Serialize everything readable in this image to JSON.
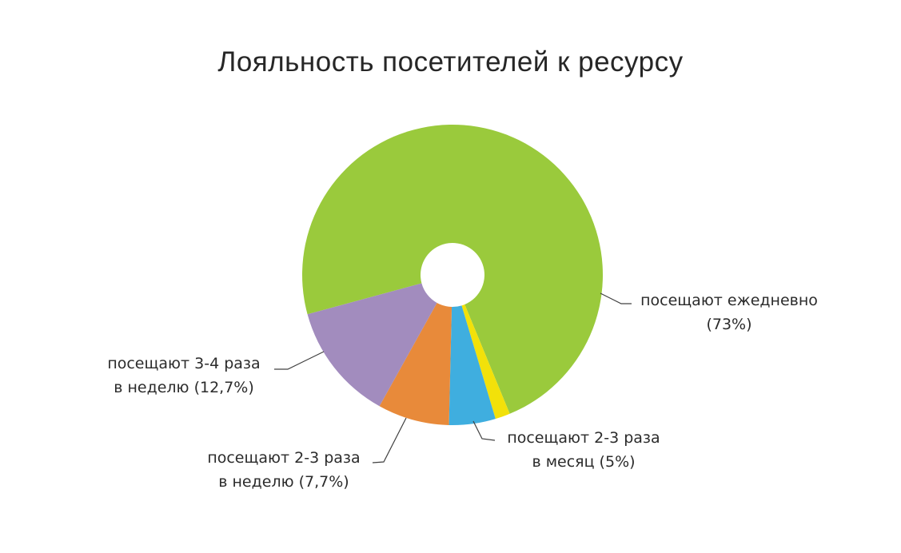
{
  "title": "Лояльность посетителей к ресурсу",
  "chart_data": {
    "type": "pie",
    "subtype": "donut",
    "title": "Лояльность посетителей к ресурсу",
    "legend": "none",
    "direction": "clockwise",
    "start_angle_deg": 164.8,
    "units": "%",
    "slices": [
      {
        "key": "daily",
        "label": "посещают ежедневно",
        "value": 73,
        "display": "посещают ежедневно (73%)",
        "color": "#9aca3c"
      },
      {
        "key": "other",
        "label": "",
        "value": 1.6,
        "display": "",
        "color": "#f2e10a"
      },
      {
        "key": "monthly-2-3",
        "label": "посещают 2-3 раза в месяц",
        "value": 5,
        "display": "посещают 2-3 раза в месяц (5%)",
        "color": "#3faedf"
      },
      {
        "key": "weekly-2-3",
        "label": "посещают 2-3 раза в неделю",
        "value": 7.7,
        "display": "посещают 2-3 раза в неделю (7,7%)",
        "color": "#e88a3a"
      },
      {
        "key": "weekly-3-4",
        "label": "посещают 3-4 раза в неделю",
        "value": 12.7,
        "display": "посещают 3-4 раза в неделю (12,7%)",
        "color": "#a28cbe"
      }
    ]
  },
  "callouts": {
    "daily": {
      "line1": "посещают ежедневно",
      "line2": "(73%)"
    },
    "weekly34": {
      "line1": "посещают 3-4 раза",
      "line2": "в неделю (12,7%)"
    },
    "weekly23": {
      "line1": "посещают 2-3 раза",
      "line2": "в неделю (7,7%)"
    },
    "monthly23": {
      "line1": "посещают 2-3 раза",
      "line2": "в месяц (5%)"
    }
  }
}
